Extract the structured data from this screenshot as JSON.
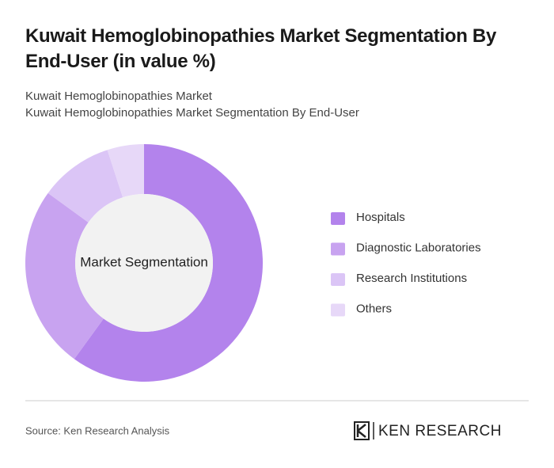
{
  "chart_data": {
    "type": "donut",
    "title": "Kuwait Hemoglobinopathies Market Segmentation By End-User (in value %)",
    "subtitle": [
      "Kuwait Hemoglobinopathies Market",
      "Kuwait Hemoglobinopathies Market Segmentation By End-User"
    ],
    "center_label": "Market Segmentation",
    "categories": [
      "Hospitals",
      "Diagnostic Laboratories",
      "Research Institutions",
      "Others"
    ],
    "values": [
      60,
      25,
      10,
      5
    ],
    "colors": [
      "#b383ec",
      "#c8a3f0",
      "#dbc5f6",
      "#e7d8f8"
    ]
  },
  "footer": {
    "source": "Source: Ken Research Analysis",
    "logo": "KEN RESEARCH"
  }
}
